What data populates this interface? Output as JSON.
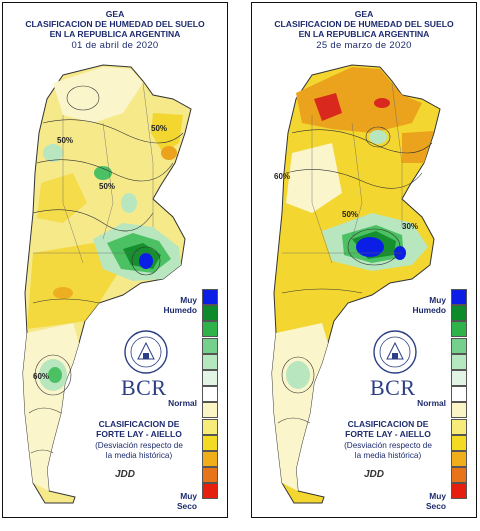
{
  "panels": [
    {
      "title_1": "GEA",
      "title_2": "CLASIFICACION DE HUMEDAD DEL SUELO",
      "title_3": "EN LA REPUBLICA ARGENTINA",
      "date": "01 de abril de 2020",
      "contour_labels": [
        "50%",
        "50%",
        "50%",
        "60%"
      ]
    },
    {
      "title_1": "GEA",
      "title_2": "CLASIFICACION DE HUMEDAD DEL SUELO",
      "title_3": "EN LA REPUBLICA ARGENTINA",
      "date": "25 de marzo de 2020",
      "contour_labels": [
        "60%",
        "50%",
        "30%"
      ]
    }
  ],
  "legend": {
    "wet_label_1": "Muy",
    "wet_label_2": "Humedo",
    "normal_label": "Normal",
    "dry_label_1": "Muy",
    "dry_label_2": "Seco",
    "colors": [
      "#0a1ee6",
      "#0d8a2a",
      "#2fb24a",
      "#74d08a",
      "#b6e8c0",
      "#e2f5e4",
      "#ffffff",
      "#fbf4c4",
      "#f7ec7a",
      "#f2db22",
      "#f0ae1a",
      "#e8741a",
      "#e61e0e"
    ]
  },
  "brand": {
    "name": "BCR"
  },
  "classification": {
    "line_1": "CLASIFICACION DE",
    "line_2": "FORTE LAY - AIELLO",
    "line_3": "(Desviación respecto de",
    "line_4": "la media histórica)"
  },
  "signature": "JDD",
  "map_colors": {
    "land_base": "#f5e98a",
    "yellow": "#f3d630",
    "orange": "#eba21c",
    "red": "#d9281e",
    "pale": "#fbf5cc",
    "light_green": "#b8e6bf",
    "mid_green": "#4cc163",
    "dark_green": "#16902e",
    "blue": "#0a1ee6"
  }
}
